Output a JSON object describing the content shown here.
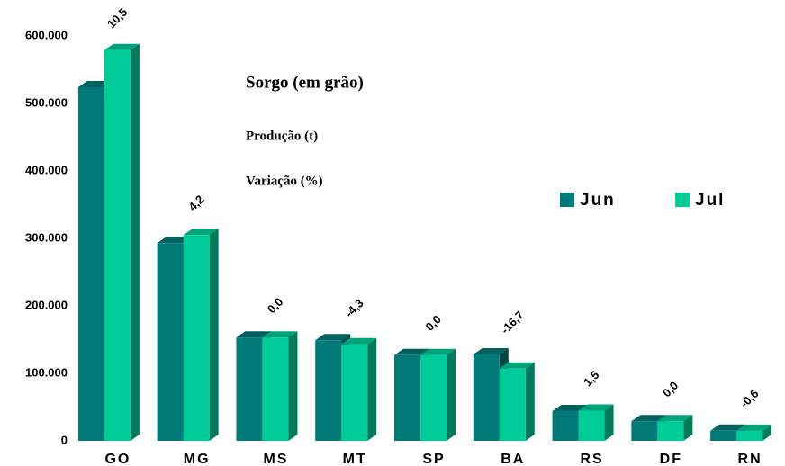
{
  "chart_data": {
    "type": "bar3d",
    "title": "Sorgo (em grão)",
    "subtitle": [
      "Produção (t)",
      "Variação (%)"
    ],
    "categories": [
      "GO",
      "MG",
      "MS",
      "MT",
      "SP",
      "BA",
      "RS",
      "DF",
      "RN"
    ],
    "series": [
      {
        "name": "Jun",
        "color": "#007a78",
        "values": [
          524000,
          293000,
          153000,
          149000,
          127000,
          128000,
          44000,
          29000,
          15000
        ]
      },
      {
        "name": "Jul",
        "color": "#00cc99",
        "values": [
          579000,
          305000,
          153000,
          143000,
          127000,
          107000,
          44700,
          29000,
          14900
        ]
      }
    ],
    "variations": [
      "10,5",
      "4,2",
      "0,0",
      "-4,3",
      "0,0",
      "-16,7",
      "1,5",
      "0,0",
      "-0,6"
    ],
    "ylim": [
      0,
      600000
    ],
    "yticks": [
      0,
      {
        "value": 100000,
        "label": "100.000"
      },
      {
        "value": 200000,
        "label": "200.000"
      },
      {
        "value": 300000,
        "label": "300.000"
      },
      {
        "value": 400000,
        "label": "400.000"
      },
      {
        "value": 500000,
        "label": "500.000"
      },
      {
        "value": 600000,
        "label": "600.000"
      }
    ],
    "legend": "right"
  }
}
